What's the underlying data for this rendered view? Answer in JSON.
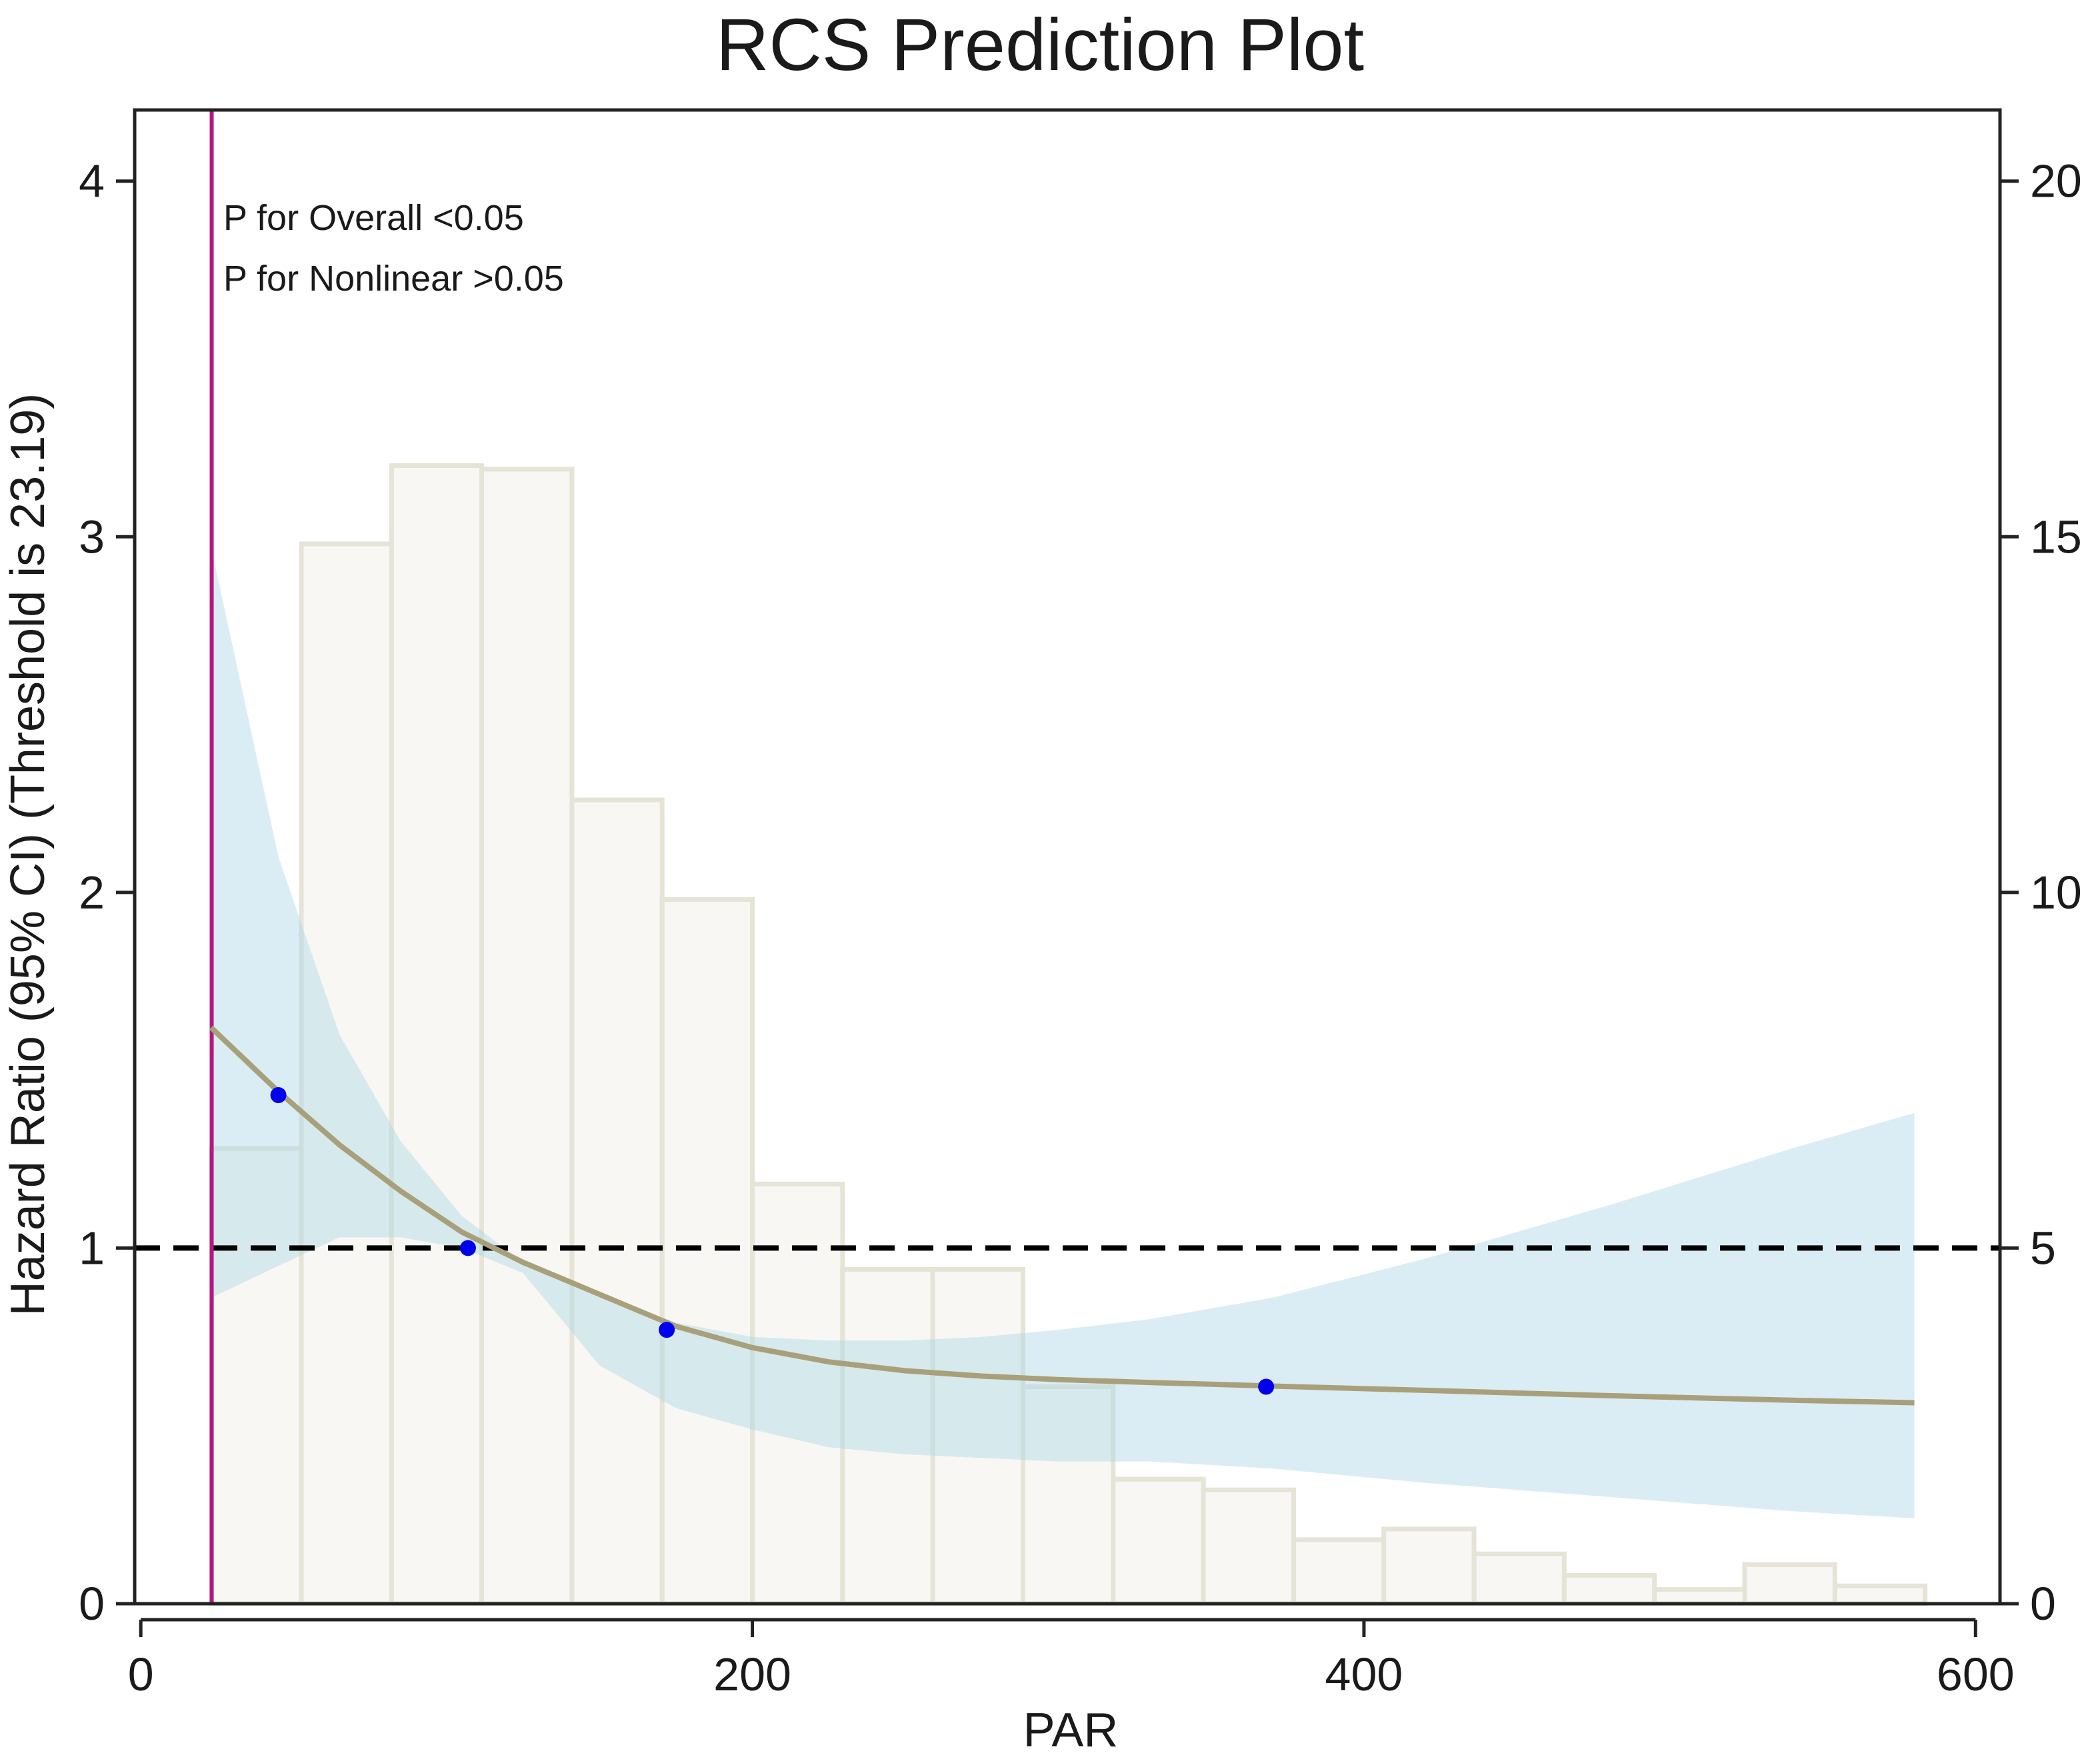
{
  "chart_data": {
    "type": "line",
    "title": "RCS Prediction Plot",
    "xlabel": "PAR",
    "ylabel": "Hazard Ratio (95% CI) (Threshold is 23.19)",
    "xlim": [
      -2,
      608
    ],
    "ylim": [
      0,
      4.2
    ],
    "y2lim": [
      0,
      21
    ],
    "xticks": [
      0,
      200,
      400,
      600
    ],
    "yticks": [
      0,
      1,
      2,
      3,
      4
    ],
    "y2ticks": [
      0,
      5,
      10,
      15,
      20
    ],
    "threshold": 23.19,
    "reference_hr": 1,
    "annotations": [
      "P for Overall <0.05",
      "P for Nonlinear >0.05"
    ],
    "grid": false,
    "colors": {
      "curve": "#a8a07a",
      "ci_band": "#add8e6",
      "histogram_fill": "#f8f7f3",
      "histogram_edge": "#e5e4d6",
      "threshold_line": "#b5177f",
      "reference_line": "#000000",
      "knots": "#0000ee"
    },
    "histogram": {
      "bin_start": 23,
      "bin_width": 29.5,
      "counts": [
        6.4,
        14.9,
        16.0,
        15.95,
        11.3,
        9.9,
        5.9,
        4.7,
        4.7,
        3.05,
        1.75,
        1.6,
        0.9,
        1.05,
        0.7,
        0.4,
        0.2,
        0.55,
        0.25
      ]
    },
    "series": [
      {
        "x": [
          23,
          45,
          65,
          85,
          105,
          125,
          150,
          175,
          200,
          225,
          250,
          275,
          300,
          330,
          370,
          420,
          480,
          540,
          580
        ],
        "values": [
          1.62,
          1.44,
          1.29,
          1.16,
          1.045,
          0.96,
          0.87,
          0.78,
          0.72,
          0.68,
          0.655,
          0.64,
          0.63,
          0.622,
          0.612,
          0.6,
          0.585,
          0.572,
          0.565
        ]
      }
    ],
    "ci_upper": [
      2.97,
      2.1,
      1.6,
      1.3,
      1.09,
      0.96,
      0.87,
      0.79,
      0.75,
      0.74,
      0.74,
      0.75,
      0.77,
      0.8,
      0.86,
      0.97,
      1.12,
      1.28,
      1.38
    ],
    "ci_lower": [
      0.86,
      0.95,
      1.03,
      1.03,
      1.0,
      0.93,
      0.67,
      0.55,
      0.49,
      0.44,
      0.42,
      0.41,
      0.4,
      0.4,
      0.38,
      0.34,
      0.3,
      0.26,
      0.24
    ],
    "knots": [
      {
        "x": 45,
        "y": 1.43
      },
      {
        "x": 107,
        "y": 1.0
      },
      {
        "x": 172,
        "y": 0.77
      },
      {
        "x": 368,
        "y": 0.61
      }
    ]
  }
}
